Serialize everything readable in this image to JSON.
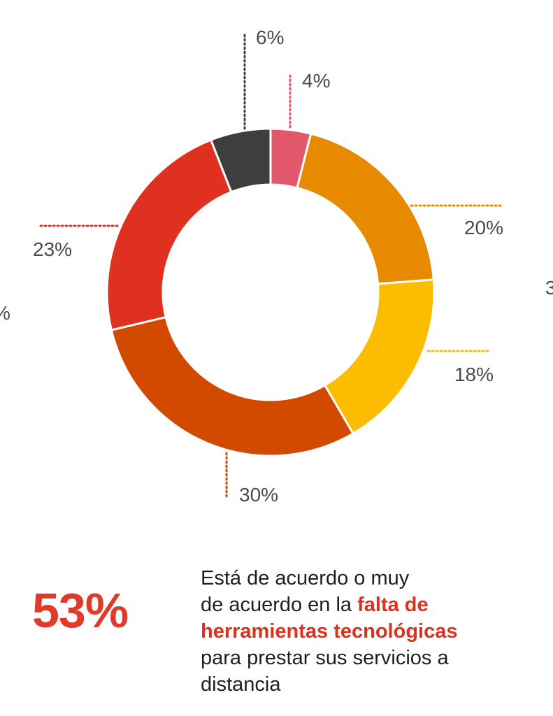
{
  "chart_data": {
    "type": "pie",
    "donut": true,
    "start_angle_deg": 0,
    "direction": "clockwise",
    "slices": [
      {
        "label": "4%",
        "value": 4,
        "color": "#e2576b",
        "leader": "up"
      },
      {
        "label": "20%",
        "value": 20,
        "color": "#e88a00",
        "leader": "right"
      },
      {
        "label": "18%",
        "value": 18,
        "color": "#fcbc00",
        "leader": "right"
      },
      {
        "label": "30%",
        "value": 30,
        "color": "#d24a00",
        "leader": "down"
      },
      {
        "label": "23%",
        "value": 23,
        "color": "#e03020",
        "leader": "left"
      },
      {
        "label": "6%",
        "value": 6,
        "color": "#3e3e3e",
        "leader": "up"
      }
    ],
    "title": "",
    "legend": "none"
  },
  "summary": {
    "stat": "53%",
    "caption_line1": "Está de acuerdo o muy",
    "caption_line2_prefix": "de acuerdo en la ",
    "caption_line2_highlight": "falta de",
    "caption_line3_highlight": "herramientas tecnológicas",
    "caption_line4": "para prestar sus servicios a",
    "caption_line5": "distancia"
  },
  "edges": {
    "left_glyph": "%",
    "right_glyph": "3"
  },
  "colors": {
    "accent": "#e03a2a",
    "text": "#333333",
    "background": "#ffffff"
  }
}
